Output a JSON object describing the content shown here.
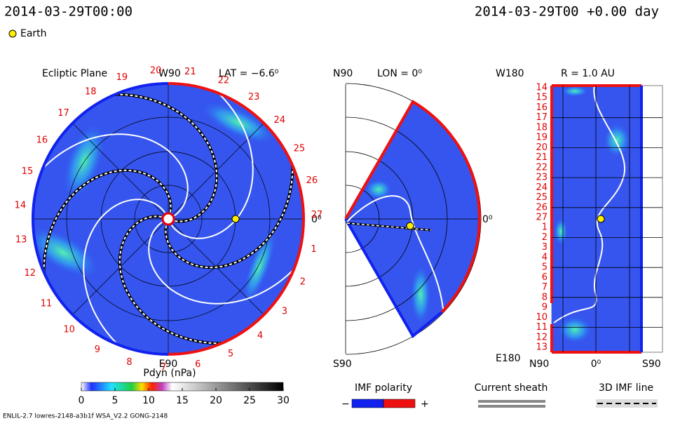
{
  "header": {
    "time": "2014-03-29T00:00",
    "model_time": "2014-03-29T00 +0.00 day",
    "legend": "Earth"
  },
  "ecliptic": {
    "title": "Ecliptic Plane",
    "top": "W90",
    "lat": "LAT = −6.6⁰",
    "right": "0⁰",
    "bottom": "E90",
    "longitudes": [
      "1",
      "2",
      "3",
      "4",
      "5",
      "6",
      "7",
      "8",
      "9",
      "10",
      "11",
      "12",
      "13",
      "14",
      "15",
      "16",
      "17",
      "18",
      "19",
      "20",
      "21",
      "22",
      "23",
      "24",
      "25",
      "26",
      "27"
    ]
  },
  "meridional": {
    "top": "N90",
    "lon": "LON = 0⁰",
    "right": "0⁰",
    "bottom": "S90"
  },
  "radial": {
    "top_left": "W180",
    "radius": "R = 1.0 AU",
    "rows": [
      "14",
      "15",
      "16",
      "17",
      "18",
      "19",
      "20",
      "21",
      "22",
      "23",
      "24",
      "25",
      "26",
      "27",
      "1",
      "2",
      "3",
      "4",
      "5",
      "6",
      "7",
      "8",
      "9",
      "10",
      "11",
      "12",
      "13"
    ],
    "bottom_left": "E180",
    "x_left": "N90",
    "x_mid": "0⁰",
    "x_right": "S90"
  },
  "colorbar": {
    "label": "Pdyn (nPa)",
    "range": [
      0,
      30
    ],
    "ticks": [
      0,
      5,
      10,
      15,
      20,
      25,
      30
    ]
  },
  "legend": {
    "imf": "IMF polarity",
    "minus": "−",
    "plus": "+",
    "sheath": "Current sheath",
    "imf_line": "3D IMF line"
  },
  "footer": "ENLIL-2.7 lowres-2148-a3b1f WSA_V2.2 GONG-2148"
}
